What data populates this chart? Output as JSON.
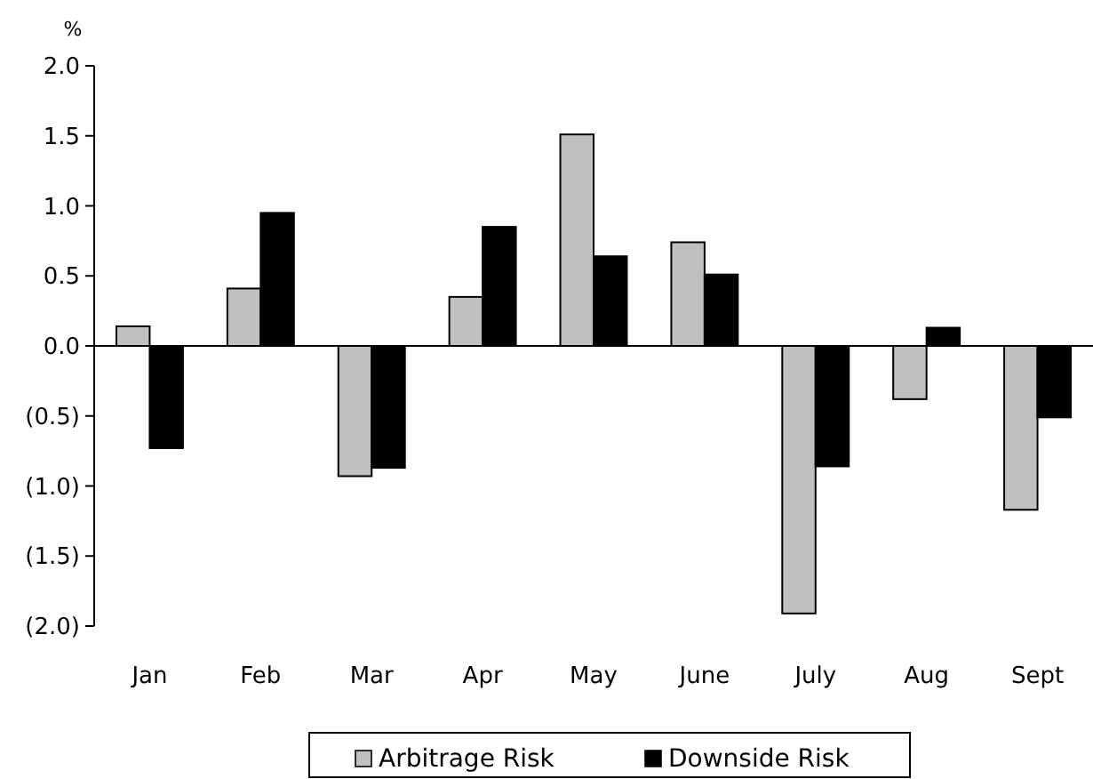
{
  "chart_data": {
    "type": "bar",
    "ylabel": "%",
    "categories": [
      "Jan",
      "Feb",
      "Mar",
      "Apr",
      "May",
      "June",
      "July",
      "Aug",
      "Sept"
    ],
    "series": [
      {
        "name": "Arbitrage Risk",
        "color": "#c0c0c0",
        "values": [
          0.14,
          0.41,
          -0.93,
          0.35,
          1.51,
          0.74,
          -1.91,
          -0.38,
          -1.17
        ]
      },
      {
        "name": "Downside Risk",
        "color": "#000000",
        "values": [
          -0.73,
          0.95,
          -0.87,
          0.85,
          0.64,
          0.51,
          -0.86,
          0.13,
          -0.51
        ]
      }
    ],
    "ylim": [
      -2,
      2
    ],
    "yticks": [
      {
        "value": -2,
        "label": "(2.0)"
      },
      {
        "value": -1.5,
        "label": "(1.5)"
      },
      {
        "value": -1,
        "label": "(1.0)"
      },
      {
        "value": -0.5,
        "label": "(0.5)"
      },
      {
        "value": 0,
        "label": "0.0"
      },
      {
        "value": 0.5,
        "label": "0.5"
      },
      {
        "value": 1,
        "label": "1.0"
      },
      {
        "value": 1.5,
        "label": "1.5"
      },
      {
        "value": 2,
        "label": "2.0"
      }
    ],
    "legend": "bottom"
  }
}
